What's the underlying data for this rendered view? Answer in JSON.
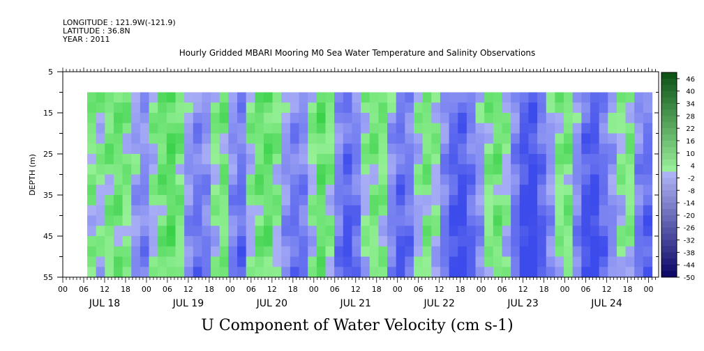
{
  "header": {
    "longitude": "LONGITUDE : 121.9W(-121.9)",
    "latitude": "LATITUDE : 36.8N",
    "year": "YEAR : 2011"
  },
  "chart_data": {
    "type": "heatmap",
    "title": "Hourly Gridded MBARI Mooring M0 Sea Water Temperature and Salinity Observations",
    "bottom_label": "U Component of Water Velocity (cm s-1)",
    "ylabel": "DEPTH (m)",
    "y_range": [
      5,
      55
    ],
    "y_inverted": true,
    "y_ticks": [
      5,
      15,
      25,
      35,
      45,
      55
    ],
    "x_range_hours": [
      "JUL 18 00",
      "JUL 25 03"
    ],
    "x_hour_ticks": [
      "00",
      "06",
      "12",
      "18",
      "00",
      "06",
      "12",
      "18",
      "00",
      "06",
      "12",
      "18",
      "00",
      "06",
      "12",
      "18",
      "00",
      "06",
      "12",
      "18",
      "00",
      "06",
      "12",
      "18",
      "00",
      "06",
      "12",
      "18",
      "00"
    ],
    "x_date_labels": [
      "JUL 18",
      "JUL 19",
      "JUL 20",
      "JUL 21",
      "JUL 22",
      "JUL 23",
      "JUL 24"
    ],
    "data_start": "JUL 18 ~07h",
    "data_end": "JUL 25 ~01h",
    "data_depth_top": 10,
    "data_depth_bottom": 55,
    "colorbar": {
      "ticks": [
        "46",
        "40",
        "34",
        "28",
        "22",
        "16",
        "10",
        "4",
        "-2",
        "-8",
        "-14",
        "-20",
        "-26",
        "-32",
        "-38",
        "-44",
        "-50"
      ],
      "range": [
        -50,
        49
      ],
      "positive_color": "#22c44a",
      "negative_color": "#3a52e8"
    },
    "u_component_by_column_cm_s": [
      6,
      4,
      8,
      10,
      6,
      -2,
      -6,
      4,
      10,
      14,
      8,
      -4,
      -10,
      -6,
      4,
      8,
      -6,
      -12,
      4,
      10,
      12,
      6,
      -4,
      -10,
      -8,
      4,
      12,
      6,
      -8,
      -16,
      -10,
      4,
      8,
      6,
      -6,
      -14,
      -10,
      2,
      8,
      4,
      -8,
      -18,
      -20,
      -12,
      -4,
      6,
      10,
      4,
      -10,
      -22,
      -24,
      -14,
      -4,
      6,
      8,
      -6,
      -18,
      -22,
      -12,
      -4,
      4,
      6,
      -8,
      -14
    ]
  }
}
